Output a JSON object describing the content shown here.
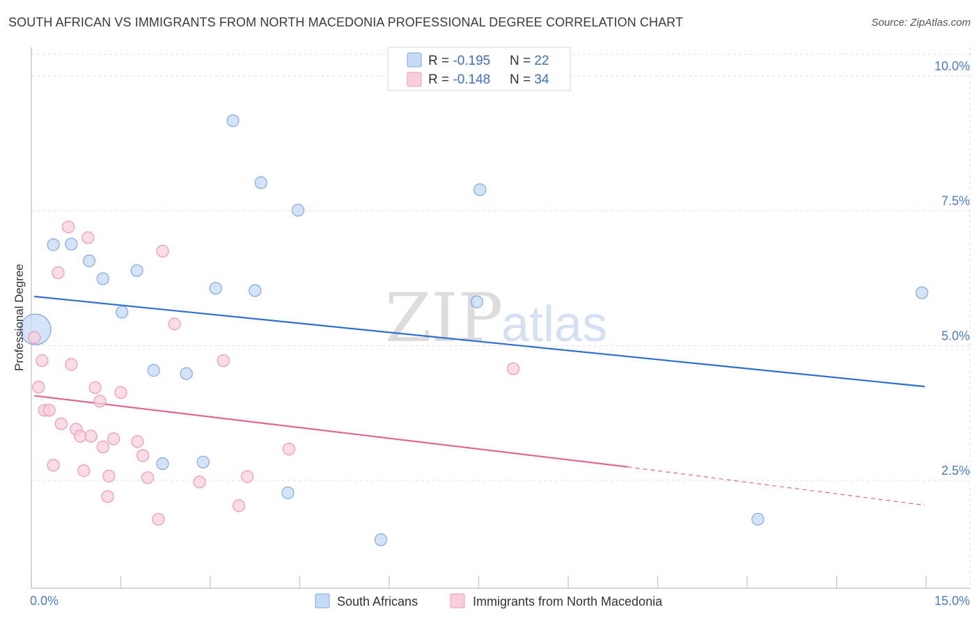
{
  "title": "SOUTH AFRICAN VS IMMIGRANTS FROM NORTH MACEDONIA PROFESSIONAL DEGREE CORRELATION CHART",
  "source": "Source: ZipAtlas.com",
  "watermark": {
    "zip": "ZIP",
    "atlas": "atlas"
  },
  "colors": {
    "blue_fill": "#c5daf5",
    "blue_stroke": "#7fa9e0",
    "blue_line": "#2f6fd0",
    "pink_fill": "#f9cfdc",
    "pink_stroke": "#eb99b3",
    "pink_line": "#e0658f",
    "grid": "#dddddd",
    "axis": "#cccccc",
    "tick_text": "#4a7cc7"
  },
  "legend": {
    "rows": [
      {
        "r_label": "R = ",
        "r_value": "-0.195",
        "n_label": "N = ",
        "n_value": "22",
        "series": "blue"
      },
      {
        "r_label": "R = ",
        "r_value": "-0.148",
        "n_label": "N = ",
        "n_value": "34",
        "series": "pink"
      }
    ]
  },
  "bottom_legend": [
    "South Africans",
    "Immigrants from North Macedonia"
  ],
  "chart_data": {
    "type": "scatter",
    "title": "SOUTH AFRICAN VS IMMIGRANTS FROM NORTH MACEDONIA PROFESSIONAL DEGREE CORRELATION CHART",
    "xlabel": "",
    "ylabel": "Professional Degree",
    "xlim": [
      0,
      15
    ],
    "ylim": [
      0.5,
      10.4
    ],
    "x_tick_labels": [
      "0.0%",
      "15.0%"
    ],
    "y_ticks": [
      2.5,
      5.0,
      7.5,
      10.0
    ],
    "y_tick_labels": [
      "2.5%",
      "5.0%",
      "7.5%",
      "10.0%"
    ],
    "grid": true,
    "series": [
      {
        "name": "South Africans",
        "color": "blue",
        "r": -0.195,
        "n": 22,
        "points": [
          {
            "x": 0.07,
            "y": 5.3,
            "big": true
          },
          {
            "x": 0.37,
            "y": 6.87
          },
          {
            "x": 0.67,
            "y": 6.88
          },
          {
            "x": 0.97,
            "y": 6.57
          },
          {
            "x": 1.2,
            "y": 6.24
          },
          {
            "x": 1.77,
            "y": 6.39
          },
          {
            "x": 1.52,
            "y": 5.62
          },
          {
            "x": 2.05,
            "y": 4.54
          },
          {
            "x": 2.6,
            "y": 4.48
          },
          {
            "x": 3.09,
            "y": 6.06
          },
          {
            "x": 3.38,
            "y": 9.17
          },
          {
            "x": 3.75,
            "y": 6.02
          },
          {
            "x": 3.85,
            "y": 8.02
          },
          {
            "x": 4.47,
            "y": 7.51
          },
          {
            "x": 7.47,
            "y": 5.81
          },
          {
            "x": 7.52,
            "y": 7.89
          },
          {
            "x": 2.2,
            "y": 2.81
          },
          {
            "x": 2.88,
            "y": 2.84
          },
          {
            "x": 4.3,
            "y": 2.27
          },
          {
            "x": 5.86,
            "y": 1.4
          },
          {
            "x": 12.18,
            "y": 1.78
          },
          {
            "x": 14.93,
            "y": 5.98
          }
        ],
        "trend": [
          [
            0.05,
            5.91
          ],
          [
            14.98,
            4.24
          ]
        ]
      },
      {
        "name": "Immigrants from North Macedonia",
        "color": "pink",
        "r": -0.148,
        "n": 34,
        "points": [
          {
            "x": 0.05,
            "y": 5.15
          },
          {
            "x": 0.12,
            "y": 4.23
          },
          {
            "x": 0.18,
            "y": 4.72
          },
          {
            "x": 0.22,
            "y": 3.8
          },
          {
            "x": 0.3,
            "y": 3.8
          },
          {
            "x": 0.37,
            "y": 2.78
          },
          {
            "x": 0.45,
            "y": 6.35
          },
          {
            "x": 0.5,
            "y": 3.55
          },
          {
            "x": 0.62,
            "y": 7.2
          },
          {
            "x": 0.67,
            "y": 4.65
          },
          {
            "x": 0.75,
            "y": 3.45
          },
          {
            "x": 0.82,
            "y": 3.32
          },
          {
            "x": 0.88,
            "y": 2.68
          },
          {
            "x": 0.95,
            "y": 7.0
          },
          {
            "x": 1.0,
            "y": 3.32
          },
          {
            "x": 1.07,
            "y": 4.22
          },
          {
            "x": 1.15,
            "y": 3.97
          },
          {
            "x": 1.2,
            "y": 3.12
          },
          {
            "x": 1.28,
            "y": 2.2
          },
          {
            "x": 1.3,
            "y": 2.58
          },
          {
            "x": 1.38,
            "y": 3.27
          },
          {
            "x": 1.5,
            "y": 4.13
          },
          {
            "x": 1.78,
            "y": 3.22
          },
          {
            "x": 1.87,
            "y": 2.96
          },
          {
            "x": 1.95,
            "y": 2.55
          },
          {
            "x": 2.13,
            "y": 1.78
          },
          {
            "x": 2.2,
            "y": 6.75
          },
          {
            "x": 2.4,
            "y": 5.4
          },
          {
            "x": 2.82,
            "y": 2.47
          },
          {
            "x": 3.22,
            "y": 4.72
          },
          {
            "x": 3.48,
            "y": 2.03
          },
          {
            "x": 3.62,
            "y": 2.57
          },
          {
            "x": 4.32,
            "y": 3.08
          },
          {
            "x": 8.08,
            "y": 4.57
          }
        ],
        "trend": [
          [
            0.05,
            4.07
          ],
          [
            10.0,
            2.75
          ]
        ],
        "trend_dashed": [
          [
            10.0,
            2.75
          ],
          [
            14.98,
            2.04
          ]
        ]
      }
    ]
  }
}
